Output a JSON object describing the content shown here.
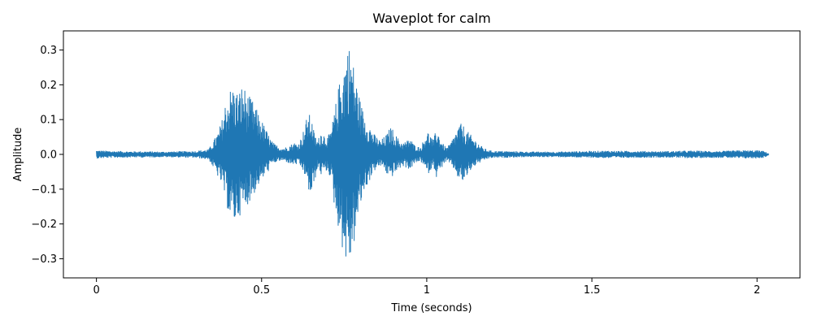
{
  "chart_data": {
    "type": "area",
    "title": "Waveplot for calm",
    "xlabel": "Time (seconds)",
    "ylabel": "Amplitude",
    "xlim": [
      -0.1,
      2.13
    ],
    "ylim": [
      -0.355,
      0.355
    ],
    "xticks": [
      0,
      0.5,
      1,
      1.5,
      2
    ],
    "xtick_labels": [
      "0",
      "0.5",
      "1",
      "1.5",
      "2"
    ],
    "yticks": [
      -0.3,
      -0.2,
      -0.1,
      0.0,
      0.1,
      0.2,
      0.3
    ],
    "ytick_labels": [
      "−0.3",
      "−0.2",
      "−0.1",
      "0.0",
      "0.1",
      "0.2",
      "0.3"
    ],
    "grid": false,
    "legend": "none",
    "color": "#1f77b4",
    "series": [
      {
        "x": [
          0,
          0.02,
          0.05,
          0.1,
          0.15,
          0.2,
          0.25,
          0.3,
          0.34,
          0.36,
          0.37,
          0.38,
          0.39,
          0.4,
          0.41,
          0.42,
          0.43,
          0.44,
          0.45,
          0.46,
          0.47,
          0.48,
          0.49,
          0.5,
          0.51,
          0.52,
          0.53,
          0.54,
          0.55,
          0.56,
          0.57,
          0.58,
          0.59,
          0.6,
          0.61,
          0.62,
          0.63,
          0.64,
          0.65,
          0.66,
          0.67,
          0.68,
          0.69,
          0.7,
          0.71,
          0.72,
          0.73,
          0.74,
          0.75,
          0.76,
          0.77,
          0.78,
          0.79,
          0.8,
          0.81,
          0.82,
          0.83,
          0.84,
          0.85,
          0.86,
          0.87,
          0.88,
          0.89,
          0.9,
          0.91,
          0.92,
          0.93,
          0.94,
          0.95,
          0.96,
          0.97,
          0.98,
          0.99,
          1.0,
          1.01,
          1.02,
          1.03,
          1.04,
          1.05,
          1.06,
          1.07,
          1.08,
          1.09,
          1.1,
          1.11,
          1.12,
          1.13,
          1.14,
          1.15,
          1.16,
          1.17,
          1.18,
          1.19,
          1.2,
          1.21,
          1.22,
          1.23,
          1.24,
          1.25,
          1.27,
          1.3,
          1.35,
          1.4,
          1.45,
          1.5,
          1.55,
          1.6,
          1.65,
          1.7,
          1.75,
          1.8,
          1.85,
          1.9,
          1.95,
          2.0,
          2.02,
          2.035
        ],
        "upper": [
          0.012,
          0.011,
          0.01,
          0.009,
          0.009,
          0.008,
          0.009,
          0.01,
          0.015,
          0.05,
          0.07,
          0.1,
          0.15,
          0.18,
          0.2,
          0.19,
          0.18,
          0.2,
          0.19,
          0.17,
          0.16,
          0.14,
          0.12,
          0.1,
          0.08,
          0.06,
          0.04,
          0.03,
          0.025,
          0.02,
          0.02,
          0.025,
          0.03,
          0.035,
          0.03,
          0.05,
          0.08,
          0.12,
          0.11,
          0.06,
          0.04,
          0.07,
          0.06,
          0.05,
          0.07,
          0.12,
          0.18,
          0.23,
          0.27,
          0.32,
          0.31,
          0.25,
          0.2,
          0.15,
          0.12,
          0.1,
          0.08,
          0.06,
          0.05,
          0.04,
          0.05,
          0.06,
          0.08,
          0.07,
          0.05,
          0.04,
          0.035,
          0.04,
          0.05,
          0.03,
          0.025,
          0.02,
          0.04,
          0.07,
          0.06,
          0.04,
          0.08,
          0.05,
          0.03,
          0.02,
          0.03,
          0.05,
          0.07,
          0.09,
          0.085,
          0.07,
          0.06,
          0.05,
          0.04,
          0.03,
          0.02,
          0.015,
          0.012,
          0.01,
          0.01,
          0.01,
          0.01,
          0.01,
          0.009,
          0.009,
          0.008,
          0.008,
          0.008,
          0.009,
          0.01,
          0.011,
          0.01,
          0.01,
          0.009,
          0.01,
          0.011,
          0.01,
          0.01,
          0.012,
          0.012,
          0.01,
          0.003
        ],
        "lower": [
          -0.012,
          -0.011,
          -0.01,
          -0.009,
          -0.009,
          -0.008,
          -0.009,
          -0.01,
          -0.015,
          -0.05,
          -0.07,
          -0.09,
          -0.13,
          -0.17,
          -0.2,
          -0.2,
          -0.18,
          -0.17,
          -0.16,
          -0.14,
          -0.13,
          -0.11,
          -0.09,
          -0.08,
          -0.06,
          -0.05,
          -0.03,
          -0.025,
          -0.02,
          -0.02,
          -0.02,
          -0.025,
          -0.03,
          -0.03,
          -0.03,
          -0.04,
          -0.06,
          -0.1,
          -0.13,
          -0.08,
          -0.04,
          -0.06,
          -0.05,
          -0.05,
          -0.07,
          -0.15,
          -0.2,
          -0.25,
          -0.3,
          -0.32,
          -0.31,
          -0.26,
          -0.2,
          -0.15,
          -0.11,
          -0.09,
          -0.07,
          -0.05,
          -0.04,
          -0.035,
          -0.04,
          -0.06,
          -0.07,
          -0.06,
          -0.05,
          -0.04,
          -0.035,
          -0.04,
          -0.045,
          -0.03,
          -0.025,
          -0.02,
          -0.03,
          -0.06,
          -0.05,
          -0.03,
          -0.07,
          -0.05,
          -0.03,
          -0.02,
          -0.03,
          -0.04,
          -0.06,
          -0.08,
          -0.08,
          -0.07,
          -0.05,
          -0.04,
          -0.03,
          -0.025,
          -0.02,
          -0.015,
          -0.012,
          -0.01,
          -0.01,
          -0.01,
          -0.01,
          -0.01,
          -0.009,
          -0.009,
          -0.008,
          -0.008,
          -0.008,
          -0.009,
          -0.01,
          -0.011,
          -0.01,
          -0.01,
          -0.009,
          -0.01,
          -0.011,
          -0.01,
          -0.01,
          -0.012,
          -0.012,
          -0.01,
          -0.003
        ]
      }
    ]
  }
}
